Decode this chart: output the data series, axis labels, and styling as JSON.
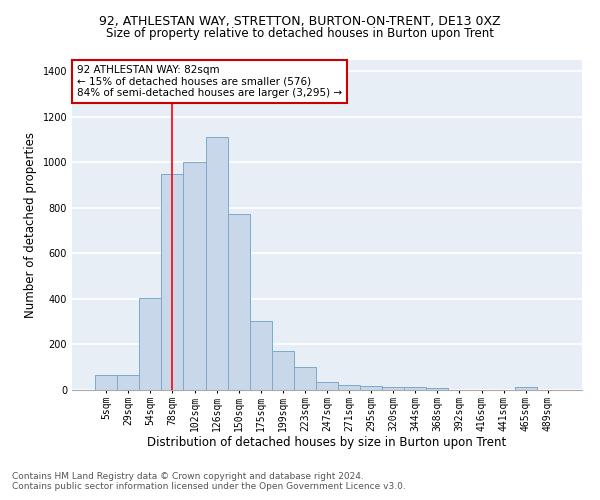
{
  "title_line1": "92, ATHLESTAN WAY, STRETTON, BURTON-ON-TRENT, DE13 0XZ",
  "title_line2": "Size of property relative to detached houses in Burton upon Trent",
  "xlabel": "Distribution of detached houses by size in Burton upon Trent",
  "ylabel": "Number of detached properties",
  "bar_color": "#c8d8ea",
  "bar_edge_color": "#7aaaca",
  "background_color": "#e8eef6",
  "grid_color": "#ffffff",
  "categories": [
    "5sqm",
    "29sqm",
    "54sqm",
    "78sqm",
    "102sqm",
    "126sqm",
    "150sqm",
    "175sqm",
    "199sqm",
    "223sqm",
    "247sqm",
    "271sqm",
    "295sqm",
    "320sqm",
    "344sqm",
    "368sqm",
    "392sqm",
    "416sqm",
    "441sqm",
    "465sqm",
    "489sqm"
  ],
  "values": [
    65,
    65,
    405,
    950,
    1000,
    1110,
    775,
    305,
    170,
    100,
    35,
    20,
    18,
    15,
    12,
    10,
    0,
    0,
    0,
    12,
    0
  ],
  "ylim": [
    0,
    1450
  ],
  "yticks": [
    0,
    200,
    400,
    600,
    800,
    1000,
    1200,
    1400
  ],
  "vline_x_index": 3,
  "annotation_text": "92 ATHLESTAN WAY: 82sqm\n← 15% of detached houses are smaller (576)\n84% of semi-detached houses are larger (3,295) →",
  "annotation_box_color": "#ffffff",
  "annotation_box_edge_color": "#cc0000",
  "footnote1": "Contains HM Land Registry data © Crown copyright and database right 2024.",
  "footnote2": "Contains public sector information licensed under the Open Government Licence v3.0.",
  "title_fontsize": 9,
  "subtitle_fontsize": 8.5,
  "ylabel_fontsize": 8.5,
  "xlabel_fontsize": 8.5,
  "tick_fontsize": 7,
  "annot_fontsize": 7.5,
  "footnote_fontsize": 6.5
}
